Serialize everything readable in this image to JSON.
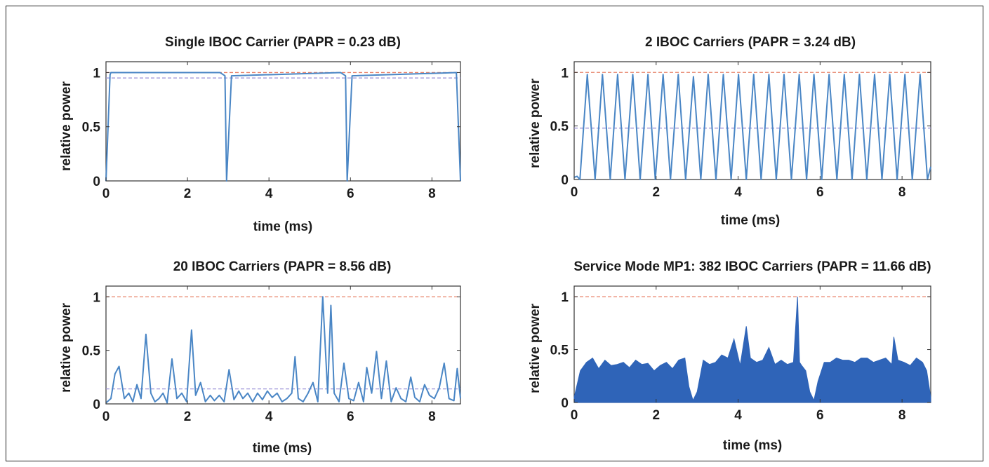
{
  "chart_data": [
    {
      "type": "line",
      "title": "Single IBOC Carrier (PAPR = 0.23 dB)",
      "xlabel": "time (ms)",
      "ylabel": "relative power",
      "xlim": [
        0,
        8.7
      ],
      "ylim": [
        0,
        1.1
      ],
      "xticks": [
        0,
        2,
        4,
        6,
        8
      ],
      "yticks": [
        0,
        0.5,
        1
      ],
      "ytick_labels": [
        "0",
        "0.5",
        "1"
      ],
      "peak_line": 1.0,
      "mean_line": 0.95,
      "colors": {
        "signal": "#4a86c5",
        "peak": "#e8826a",
        "mean": "#9d94d8"
      },
      "series": [
        {
          "x": [
            0,
            0.1,
            0.12,
            2.8,
            2.92,
            2.96,
            3.08,
            5.76,
            5.88,
            5.92,
            6.04,
            8.6,
            8.7
          ],
          "y": [
            0,
            0.98,
            1.0,
            1.0,
            0.97,
            0,
            0.97,
            1.0,
            0.97,
            0,
            0.97,
            1.0,
            0
          ]
        }
      ]
    },
    {
      "type": "line",
      "title": "2 IBOC Carriers (PAPR = 3.24 dB)",
      "xlabel": "time (ms)",
      "ylabel": "relative power",
      "xlim": [
        0,
        8.7
      ],
      "ylim": [
        0,
        1.1
      ],
      "xticks": [
        0,
        2,
        4,
        6,
        8
      ],
      "yticks": [
        0,
        0.5,
        1
      ],
      "ytick_labels": [
        "0",
        "0.5",
        "1"
      ],
      "peak_line": 1.0,
      "mean_line": 0.48,
      "colors": {
        "signal": "#4a86c5",
        "peak": "#e8826a",
        "mean": "#9d94d8"
      },
      "series": [
        {
          "x": [
            0,
            0.07,
            0.14,
            0.32,
            0.51,
            0.69,
            0.88,
            1.06,
            1.24,
            1.43,
            1.61,
            1.8,
            1.98,
            2.17,
            2.35,
            2.54,
            2.72,
            2.91,
            3.09,
            3.27,
            3.46,
            3.64,
            3.83,
            4.01,
            4.2,
            4.38,
            4.56,
            4.75,
            4.93,
            5.12,
            5.3,
            5.49,
            5.67,
            5.85,
            6.04,
            6.22,
            6.41,
            6.59,
            6.78,
            6.96,
            7.14,
            7.33,
            7.51,
            7.7,
            7.88,
            8.07,
            8.25,
            8.44,
            8.62,
            8.7
          ],
          "y": [
            0.02,
            0.03,
            0,
            0.98,
            0,
            0.98,
            0,
            0.98,
            0,
            0.98,
            0,
            0.98,
            0,
            0.98,
            0,
            0.98,
            0,
            0.96,
            0,
            0.98,
            0,
            0.98,
            0,
            0.98,
            0,
            0.98,
            0,
            0.98,
            0,
            0.98,
            0,
            0.98,
            0,
            0.98,
            0,
            0.98,
            0,
            0.98,
            0,
            0.98,
            0,
            0.98,
            0,
            0.98,
            0,
            0.98,
            0,
            0.98,
            0,
            0.12
          ]
        }
      ]
    },
    {
      "type": "line",
      "title": "20 IBOC Carriers (PAPR = 8.56 dB)",
      "xlabel": "time (ms)",
      "ylabel": "relative power",
      "xlim": [
        0,
        8.7
      ],
      "ylim": [
        0,
        1.1
      ],
      "xticks": [
        0,
        2,
        4,
        6,
        8
      ],
      "yticks": [
        0,
        0.5,
        1
      ],
      "ytick_labels": [
        "0",
        "0.5",
        "1"
      ],
      "peak_line": 1.0,
      "mean_line": 0.14,
      "colors": {
        "signal": "#4a86c5",
        "peak": "#e8826a",
        "mean": "#9d94d8"
      },
      "series": [
        {
          "x": [
            0,
            0.12,
            0.22,
            0.32,
            0.45,
            0.56,
            0.66,
            0.76,
            0.86,
            0.98,
            1.1,
            1.2,
            1.3,
            1.4,
            1.5,
            1.62,
            1.74,
            1.86,
            1.98,
            2.1,
            2.2,
            2.32,
            2.44,
            2.56,
            2.66,
            2.78,
            2.9,
            3.02,
            3.14,
            3.26,
            3.36,
            3.48,
            3.6,
            3.72,
            3.84,
            3.96,
            4.08,
            4.2,
            4.32,
            4.44,
            4.56,
            4.64,
            4.72,
            4.84,
            4.96,
            5.08,
            5.2,
            5.32,
            5.44,
            5.52,
            5.6,
            5.72,
            5.84,
            5.96,
            6.08,
            6.2,
            6.32,
            6.4,
            6.52,
            6.64,
            6.76,
            6.88,
            7.0,
            7.12,
            7.24,
            7.36,
            7.48,
            7.58,
            7.7,
            7.82,
            7.94,
            8.06,
            8.18,
            8.3,
            8.42,
            8.54,
            8.62,
            8.7
          ],
          "y": [
            0.01,
            0.05,
            0.28,
            0.35,
            0.05,
            0.1,
            0.02,
            0.18,
            0.05,
            0.65,
            0.1,
            0.02,
            0.05,
            0.1,
            0.01,
            0.42,
            0.05,
            0.1,
            0.02,
            0.69,
            0.08,
            0.2,
            0.02,
            0.08,
            0.03,
            0.08,
            0.02,
            0.32,
            0.04,
            0.12,
            0.05,
            0.1,
            0.02,
            0.1,
            0.04,
            0.12,
            0.06,
            0.1,
            0.02,
            0.05,
            0.1,
            0.44,
            0.05,
            0.02,
            0.1,
            0.2,
            0.02,
            1.0,
            0.1,
            0.92,
            0.1,
            0.02,
            0.38,
            0.05,
            0.03,
            0.2,
            0.02,
            0.34,
            0.1,
            0.49,
            0.05,
            0.4,
            0.02,
            0.15,
            0.05,
            0.02,
            0.25,
            0.06,
            0.02,
            0.18,
            0.08,
            0.05,
            0.15,
            0.38,
            0.05,
            0.03,
            0.33,
            0.05
          ]
        }
      ]
    },
    {
      "type": "area",
      "title": "Service Mode MP1: 382 IBOC Carriers (PAPR = 11.66 dB)",
      "xlabel": "time (ms)",
      "ylabel": "relative power",
      "xlim": [
        0,
        8.7
      ],
      "ylim": [
        0,
        1.1
      ],
      "xticks": [
        0,
        2,
        4,
        6,
        8
      ],
      "yticks": [
        0,
        0.5,
        1
      ],
      "ytick_labels": [
        "0",
        "0.5",
        "1"
      ],
      "peak_line": 1.0,
      "colors": {
        "signal": "#2f64b8",
        "peak": "#e8826a"
      },
      "series": [
        {
          "x": [
            0,
            0.15,
            0.3,
            0.45,
            0.6,
            0.75,
            0.9,
            1.05,
            1.2,
            1.35,
            1.5,
            1.65,
            1.8,
            1.95,
            2.1,
            2.25,
            2.4,
            2.55,
            2.7,
            2.8,
            2.9,
            3.0,
            3.15,
            3.3,
            3.45,
            3.6,
            3.75,
            3.9,
            4.05,
            4.2,
            4.3,
            4.45,
            4.6,
            4.75,
            4.9,
            5.05,
            5.2,
            5.35,
            5.45,
            5.5,
            5.55,
            5.65,
            5.75,
            5.85,
            5.95,
            6.1,
            6.25,
            6.4,
            6.55,
            6.7,
            6.85,
            7.0,
            7.15,
            7.3,
            7.45,
            7.6,
            7.75,
            7.8,
            7.9,
            8.05,
            8.2,
            8.35,
            8.5,
            8.6,
            8.7
          ],
          "y": [
            0.05,
            0.3,
            0.38,
            0.42,
            0.32,
            0.4,
            0.35,
            0.36,
            0.38,
            0.33,
            0.4,
            0.36,
            0.37,
            0.3,
            0.35,
            0.38,
            0.32,
            0.4,
            0.42,
            0.15,
            0.02,
            0.1,
            0.4,
            0.36,
            0.38,
            0.45,
            0.42,
            0.6,
            0.35,
            0.72,
            0.42,
            0.38,
            0.4,
            0.52,
            0.36,
            0.4,
            0.36,
            0.38,
            1.0,
            0.38,
            0.35,
            0.3,
            0.1,
            0.02,
            0.2,
            0.38,
            0.38,
            0.42,
            0.4,
            0.4,
            0.38,
            0.42,
            0.42,
            0.38,
            0.4,
            0.42,
            0.36,
            0.62,
            0.4,
            0.38,
            0.35,
            0.42,
            0.38,
            0.3,
            0.05
          ]
        }
      ]
    }
  ]
}
